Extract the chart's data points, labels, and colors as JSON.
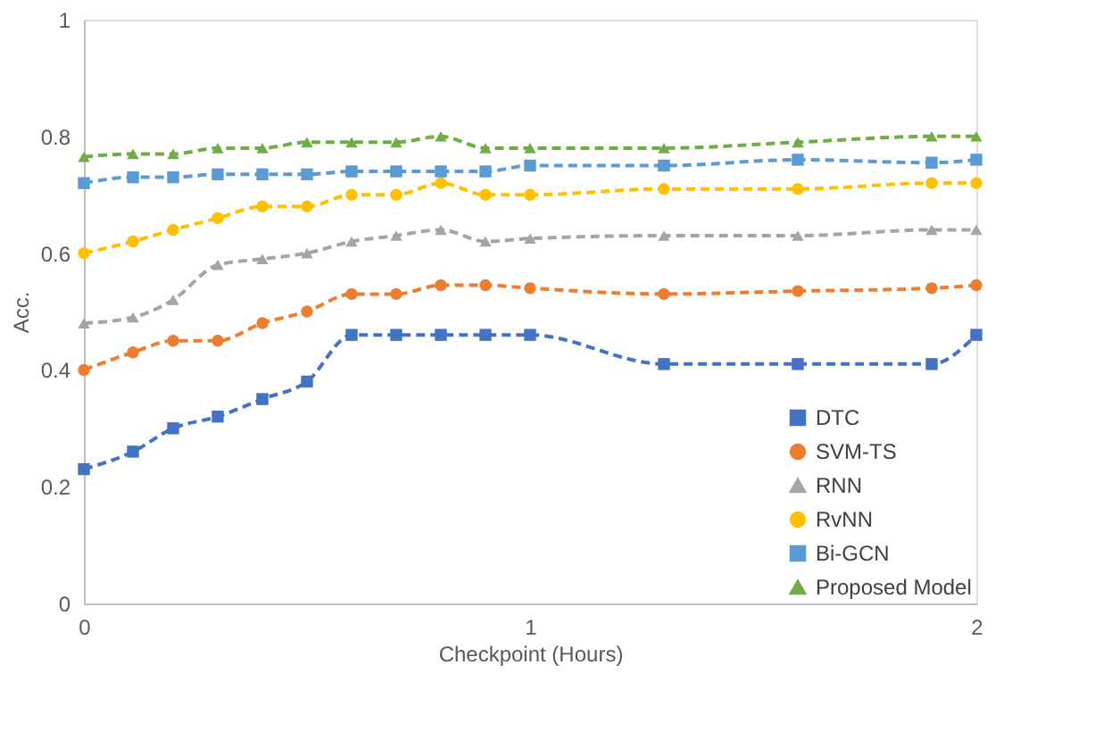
{
  "chart_data": {
    "type": "line",
    "xlabel": "Checkpoint (Hours)",
    "ylabel": "Acc.",
    "x": [
      0,
      0.11,
      0.2,
      0.3,
      0.4,
      0.5,
      0.6,
      0.7,
      0.8,
      0.9,
      1.0,
      1.3,
      1.6,
      1.9,
      2.0
    ],
    "series": [
      {
        "name": "DTC",
        "color": "#4472c4",
        "marker": "square",
        "values": [
          0.23,
          0.26,
          0.3,
          0.32,
          0.35,
          0.38,
          0.46,
          0.46,
          0.46,
          0.46,
          0.46,
          0.41,
          0.41,
          0.41,
          0.46
        ]
      },
      {
        "name": "SVM-TS",
        "color": "#ed7d31",
        "marker": "circle",
        "values": [
          0.4,
          0.43,
          0.45,
          0.45,
          0.48,
          0.5,
          0.53,
          0.53,
          0.545,
          0.545,
          0.54,
          0.53,
          0.535,
          0.54,
          0.545
        ]
      },
      {
        "name": "RNN",
        "color": "#a5a5a5",
        "marker": "triangle",
        "values": [
          0.48,
          0.49,
          0.52,
          0.58,
          0.59,
          0.6,
          0.62,
          0.63,
          0.64,
          0.62,
          0.625,
          0.63,
          0.63,
          0.64,
          0.64
        ]
      },
      {
        "name": "RvNN",
        "color": "#ffc000",
        "marker": "circle",
        "values": [
          0.6,
          0.62,
          0.64,
          0.66,
          0.68,
          0.68,
          0.7,
          0.7,
          0.72,
          0.7,
          0.7,
          0.71,
          0.71,
          0.72,
          0.72
        ]
      },
      {
        "name": "Bi-GCN",
        "color": "#5b9bd5",
        "marker": "square",
        "values": [
          0.72,
          0.73,
          0.73,
          0.735,
          0.735,
          0.735,
          0.74,
          0.74,
          0.74,
          0.74,
          0.75,
          0.75,
          0.76,
          0.755,
          0.76
        ]
      },
      {
        "name": "Proposed Model",
        "color": "#70ad47",
        "marker": "triangle",
        "values": [
          0.765,
          0.77,
          0.77,
          0.78,
          0.78,
          0.79,
          0.79,
          0.79,
          0.8,
          0.78,
          0.78,
          0.78,
          0.79,
          0.8,
          0.8
        ]
      }
    ],
    "xlim": [
      0,
      2
    ],
    "xticks": [
      0,
      1,
      2
    ],
    "ylim": [
      0,
      1
    ],
    "yticks": [
      0,
      0.2,
      0.4,
      0.6,
      0.8,
      1
    ],
    "grid": false,
    "legend": "bottom right",
    "line_style": "dashed"
  }
}
